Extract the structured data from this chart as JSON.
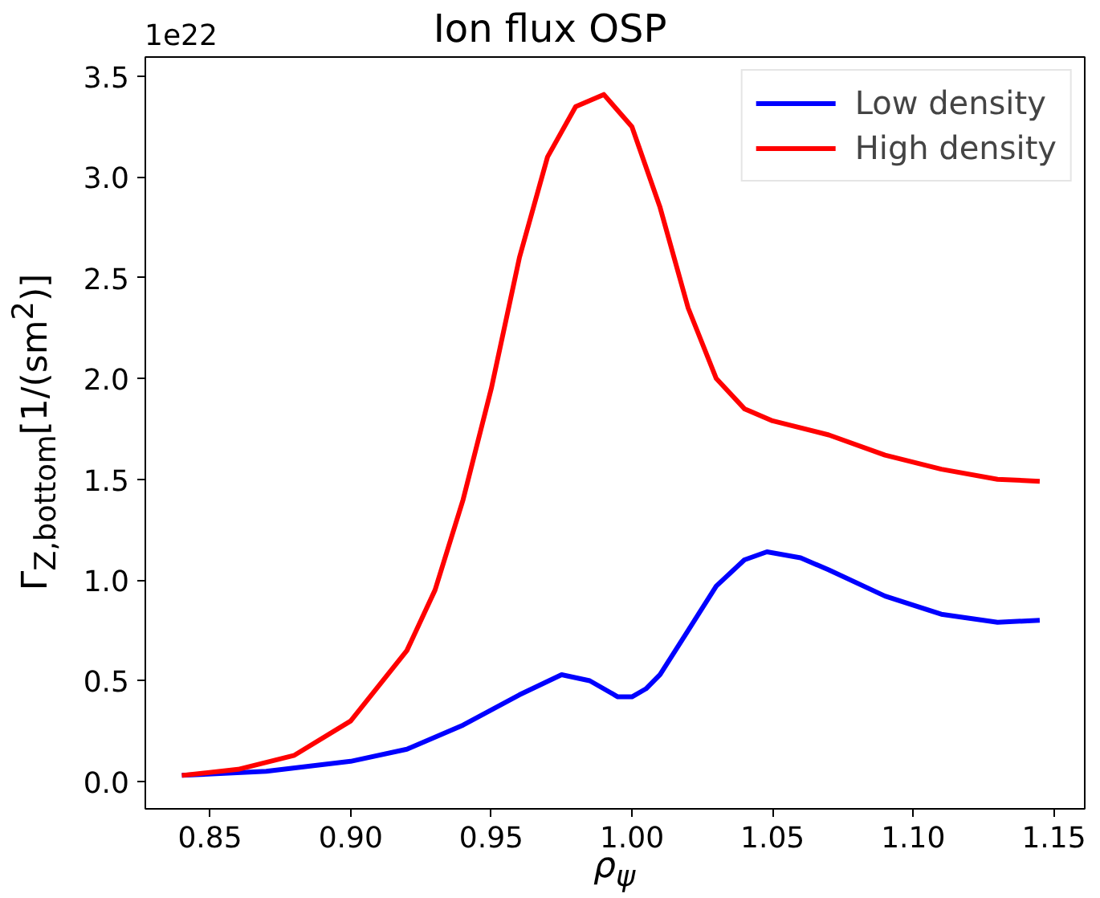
{
  "chart_data": {
    "type": "line",
    "title": "Ion flux OSP",
    "xlabel": "ρ$_{ψ}$",
    "ylabel": "Γ$_{Z,bottom}$[1/(sm$^{2}$)]",
    "annotations": [
      "1e22"
    ],
    "xlim": [
      0.827,
      1.161
    ],
    "ylim": [
      -0.136,
      3.596
    ],
    "xticks": [
      {
        "value": 0.85,
        "label": "0.85"
      },
      {
        "value": 0.9,
        "label": "0.90"
      },
      {
        "value": 0.95,
        "label": "0.95"
      },
      {
        "value": 1.0,
        "label": "1.00"
      },
      {
        "value": 1.05,
        "label": "1.05"
      },
      {
        "value": 1.1,
        "label": "1.10"
      },
      {
        "value": 1.15,
        "label": "1.15"
      }
    ],
    "yticks": [
      {
        "value": 0,
        "label": "0.0"
      },
      0.5,
      {
        "value": 1,
        "label": "1.0"
      },
      1.5,
      {
        "value": 2,
        "label": "2.0"
      },
      2.5,
      {
        "value": 3,
        "label": "3.0"
      },
      3.5
    ],
    "grid": false,
    "legend": "top right",
    "marker": "none",
    "line_style": "solid",
    "series": [
      {
        "name": "Low density",
        "color": "#0000ff",
        "x": [
          0.84,
          0.87,
          0.9,
          0.92,
          0.94,
          0.96,
          0.975,
          0.985,
          0.995,
          1.0,
          1.005,
          1.01,
          1.02,
          1.03,
          1.04,
          1.048,
          1.06,
          1.07,
          1.09,
          1.11,
          1.13,
          1.145
        ],
        "values": [
          0.03,
          0.05,
          0.1,
          0.16,
          0.28,
          0.43,
          0.53,
          0.5,
          0.42,
          0.42,
          0.46,
          0.53,
          0.75,
          0.97,
          1.1,
          1.14,
          1.11,
          1.05,
          0.92,
          0.83,
          0.79,
          0.8
        ]
      },
      {
        "name": "High density",
        "color": "#ff0000",
        "x": [
          0.84,
          0.86,
          0.88,
          0.9,
          0.92,
          0.93,
          0.94,
          0.95,
          0.96,
          0.97,
          0.98,
          0.99,
          1.0,
          1.01,
          1.02,
          1.03,
          1.04,
          1.05,
          1.07,
          1.09,
          1.11,
          1.13,
          1.145
        ],
        "values": [
          0.03,
          0.06,
          0.13,
          0.3,
          0.65,
          0.95,
          1.4,
          1.95,
          2.6,
          3.1,
          3.35,
          3.41,
          3.25,
          2.85,
          2.35,
          2.0,
          1.85,
          1.79,
          1.72,
          1.62,
          1.55,
          1.5,
          1.49
        ]
      }
    ]
  }
}
